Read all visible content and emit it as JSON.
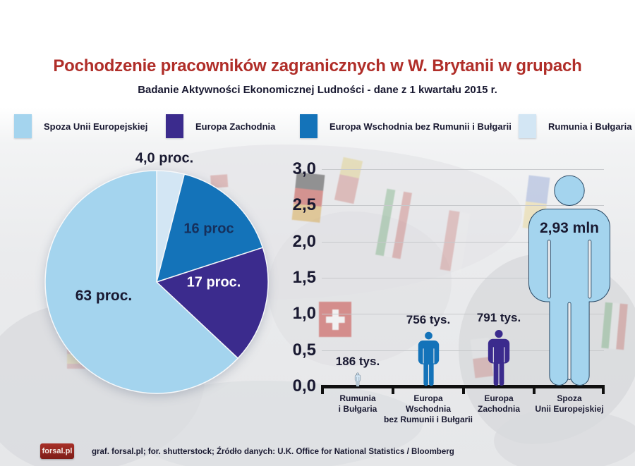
{
  "header": {
    "title": "Pochodzenie pracowników zagranicznych w W. Brytanii w grupach",
    "subtitle": "Badanie Aktywności Ekonomicznej Ludności - dane z 1 kwartału 2015 r."
  },
  "colors": {
    "title_red": "#b02e29",
    "text_dark": "#191931",
    "non_eu_light_blue": "#a4d4ee",
    "western_europe_purple": "#3b2b8d",
    "eastern_europe_blue": "#1473b9",
    "romania_bulgaria_pale_blue": "#d3e6f4",
    "axis_black": "#101010"
  },
  "legend": {
    "items": [
      {
        "label": "Spoza Unii Europejskiej",
        "color": "#a4d4ee"
      },
      {
        "label": "Europa Zachodnia",
        "color": "#3b2b8d"
      },
      {
        "label": "Europa Wschodnia bez Rumunii i Bułgarii",
        "color": "#1473b9"
      },
      {
        "label": "Rumunia i Bułgaria",
        "color": "#d3e6f4"
      }
    ]
  },
  "chart_data": [
    {
      "type": "pie",
      "direction": "clockwise",
      "start_angle_deg": 0,
      "slices": [
        {
          "label": "Rumunia i Bułgaria",
          "value": 4,
          "display": "4,0 proc.",
          "color": "#d3e6f4",
          "label_color": "#191931",
          "label_pos": "outside-top"
        },
        {
          "label": "Europa Wschodnia bez Rumunii i Bułgarii",
          "value": 16,
          "display": "16 proc",
          "color": "#1473b9",
          "label_color": "#16305c",
          "label_pos": "inside"
        },
        {
          "label": "Europa Zachodnia",
          "value": 17,
          "display": "17 proc.",
          "color": "#3b2b8d",
          "label_color": "#ffffff",
          "label_pos": "inside"
        },
        {
          "label": "Spoza Unii Europejskiej",
          "value": 63,
          "display": "63 proc.",
          "color": "#a4d4ee",
          "label_color": "#191931",
          "label_pos": "inside"
        }
      ]
    },
    {
      "type": "bar",
      "style": "pictogram-people",
      "categories": [
        [
          "Rumunia",
          "i Bułgaria"
        ],
        [
          "Europa",
          "Wschodnia",
          "bez Rumunii i Bułgarii"
        ],
        [
          "Europa",
          "Zachodnia"
        ],
        [
          "Spoza",
          "Unii Europejskiej"
        ]
      ],
      "values_mln": [
        0.186,
        0.756,
        0.791,
        2.93
      ],
      "value_labels": [
        "186 tys.",
        "756 tys.",
        "791 tys.",
        "2,93 mln"
      ],
      "bar_colors": [
        "#d3e6f4",
        "#1473b9",
        "#3b2b8d",
        "#a4d4ee"
      ],
      "bar_outlines": [
        "#5a6c7c",
        "none",
        "none",
        "#2a4a66"
      ],
      "ylim": [
        0,
        3.0
      ],
      "grid": true,
      "yticks": [
        {
          "v": 0.0,
          "label": "0,0"
        },
        {
          "v": 0.5,
          "label": "0,5"
        },
        {
          "v": 1.0,
          "label": "1,0"
        },
        {
          "v": 1.5,
          "label": "1,5"
        },
        {
          "v": 2.0,
          "label": "2,0"
        },
        {
          "v": 2.5,
          "label": "2,5"
        },
        {
          "v": 3.0,
          "label": "3,0"
        }
      ]
    }
  ],
  "footer": {
    "logo_text": "forsal.pl",
    "credits": "graf. forsal.pl; for. shutterstock;  Źródło danych:  U.K. Office for National Statistics / Bloomberg"
  }
}
